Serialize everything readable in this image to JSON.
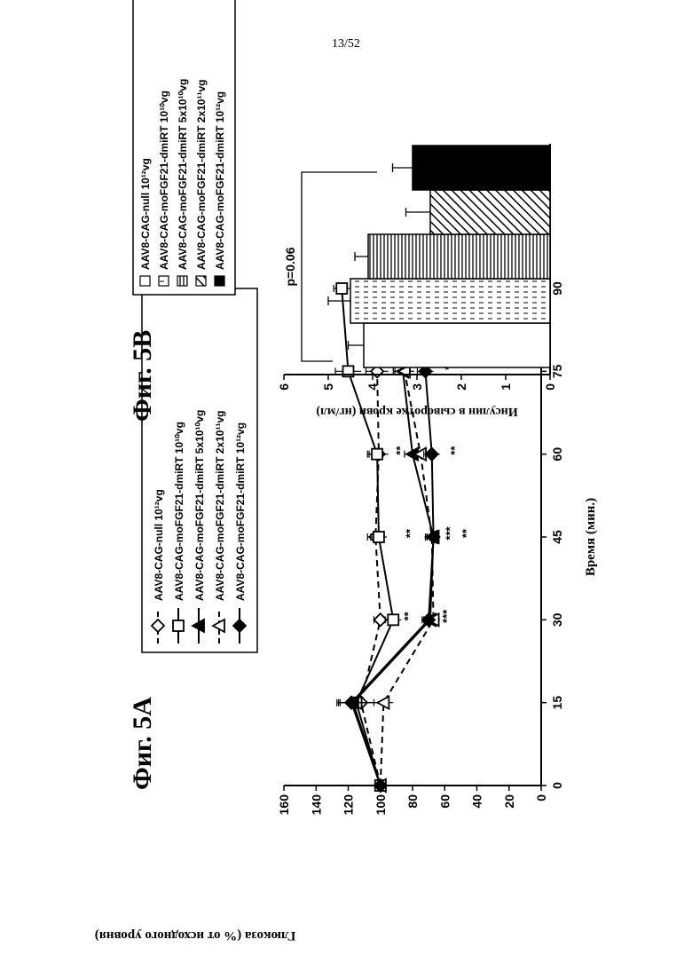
{
  "page_number": "13/52",
  "chart_data": [
    {
      "figure_label": "Фиг. 5А",
      "type": "line",
      "xlabel": "Время (мин.)",
      "ylabel": "Глюкоза (% от исходного уровня)",
      "x": [
        0,
        15,
        30,
        45,
        60,
        75,
        90
      ],
      "x_ticks": [
        "0",
        "15",
        "30",
        "45",
        "60",
        "75",
        "90"
      ],
      "y_ticks": [
        "0",
        "20",
        "40",
        "60",
        "80",
        "100",
        "120",
        "140",
        "160"
      ],
      "xlim": [
        0,
        90
      ],
      "ylim": [
        0,
        160
      ],
      "legend_placement": "top-right",
      "series": [
        {
          "name": "AAV8-CAG-null 10¹²vg",
          "marker": "open-diamond",
          "line": "dashed",
          "values": [
            100,
            112,
            100,
            103,
            101,
            102,
            106
          ],
          "errors": [
            2,
            8,
            4,
            5,
            6,
            7,
            5
          ]
        },
        {
          "name": "AAV8-CAG-moFGF21-dmiRT 10¹⁰vg",
          "marker": "open-square",
          "line": "solid",
          "values": [
            100,
            115,
            92,
            101,
            102,
            120,
            124
          ],
          "errors": [
            2,
            12,
            5,
            5,
            6,
            8,
            5
          ]
        },
        {
          "name": "AAV8-CAG-moFGF21-dmiRT 5x10¹⁰vg",
          "marker": "filled-triangle",
          "line": "solid",
          "values": [
            100,
            117,
            69,
            67,
            80,
            86,
            103
          ],
          "errors": [
            2,
            8,
            4,
            4,
            5,
            6,
            5
          ]
        },
        {
          "name": "AAV8-CAG-moFGF21-dmiRT 2x10¹¹vg",
          "marker": "open-triangle",
          "line": "dashed",
          "values": [
            100,
            98,
            67,
            68,
            75,
            85,
            93
          ],
          "errors": [
            2,
            6,
            4,
            4,
            5,
            6,
            5
          ]
        },
        {
          "name": "AAV8-CAG-moFGF21-dmiRT 10¹²vg",
          "marker": "filled-diamond",
          "line": "solid",
          "values": [
            100,
            118,
            70,
            67,
            68,
            72,
            87
          ],
          "errors": [
            2,
            8,
            4,
            4,
            5,
            5,
            6
          ]
        }
      ],
      "annotations": [
        {
          "text": "**",
          "x": 30,
          "y": 83
        },
        {
          "text": "***",
          "x": 30,
          "y": 59
        },
        {
          "text": "**",
          "x": 45,
          "y": 82
        },
        {
          "text": "***",
          "x": 45,
          "y": 57
        },
        {
          "text": "**",
          "x": 45,
          "y": 47
        },
        {
          "text": "**",
          "x": 60,
          "y": 88
        },
        {
          "text": "**",
          "x": 60,
          "y": 54
        },
        {
          "text": "*",
          "x": 75,
          "y": 58
        }
      ]
    },
    {
      "figure_label": "Фиг. 5В",
      "type": "bar",
      "ylabel": "Инсулин в сыворотке крови (нг/мл)",
      "y_ticks": [
        "0",
        "1",
        "2",
        "3",
        "4",
        "5",
        "6"
      ],
      "ylim": [
        0,
        6
      ],
      "legend_placement": "top-right",
      "categories": [
        "AAV8-CAG-null 10¹²vg",
        "AAV8-CAG-moFGF21-dmiRT 10¹⁰vg",
        "AAV8-CAG-moFGF21-dmiRT 5x10¹⁰vg",
        "AAV8-CAG-moFGF21-dmiRT 2x10¹¹vg",
        "AAV8-CAG-moFGF21-dmiRT 10¹²vg"
      ],
      "patterns": [
        "white",
        "horizontal-dashes",
        "vertical-lines",
        "diagonal-hatch",
        "black"
      ],
      "values": [
        4.2,
        4.5,
        4.1,
        2.7,
        3.1
      ],
      "errors": [
        0.35,
        0.5,
        0.3,
        0.55,
        0.45
      ],
      "annotation": "p=0.06"
    }
  ]
}
